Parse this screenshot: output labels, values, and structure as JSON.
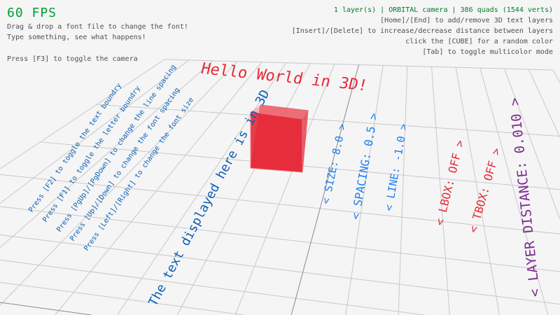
{
  "hud": {
    "fps": "60 FPS",
    "help_lines": [
      "Drag & drop a font file to change the font!",
      "Type something, see what happens!",
      "Press [F3] to toggle the camera"
    ],
    "status": "1 layer(s) | ORBITAL camera |  386 quads (1544 verts)",
    "controls": [
      "[Home]/[End] to add/remove 3D text layers",
      "[Insert]/[Delete] to increase/decrease distance between layers",
      "click the [CUBE] for a random color",
      "[Tab] to toggle multicolor mode"
    ]
  },
  "scene": {
    "title_text": "Hello World in 3D!",
    "instructions": [
      "Press [F2] to toggle the text boundry",
      "Press [F1] to toggle the letter boundry",
      "Press [PgUp]/[PgDown] to change the line spacing",
      "Press [Up]/[Down] to change the font spacing",
      "Press [Left]/[Right] to change the font size"
    ],
    "big_text": "The text displayed here is in 3D",
    "settings": {
      "size": "< SIZE: 8.0 >",
      "spacing": "< SPACING: 0.5 >",
      "line": "< LINE: -1.0 >",
      "lbox": "< LBOX: OFF >",
      "tbox": "< TBOX: OFF >",
      "layer_distance": "< LAYER DISTANCE: 0.010 >"
    },
    "cube_color": "#e62937"
  },
  "colors": {
    "fps": "#00a030",
    "status": "#007a2a",
    "hud": "#505050",
    "text_blue": "#0b5fb8",
    "accent_blue": "#1e7ff0",
    "red": "#e62937",
    "purple": "#7d2a90"
  }
}
